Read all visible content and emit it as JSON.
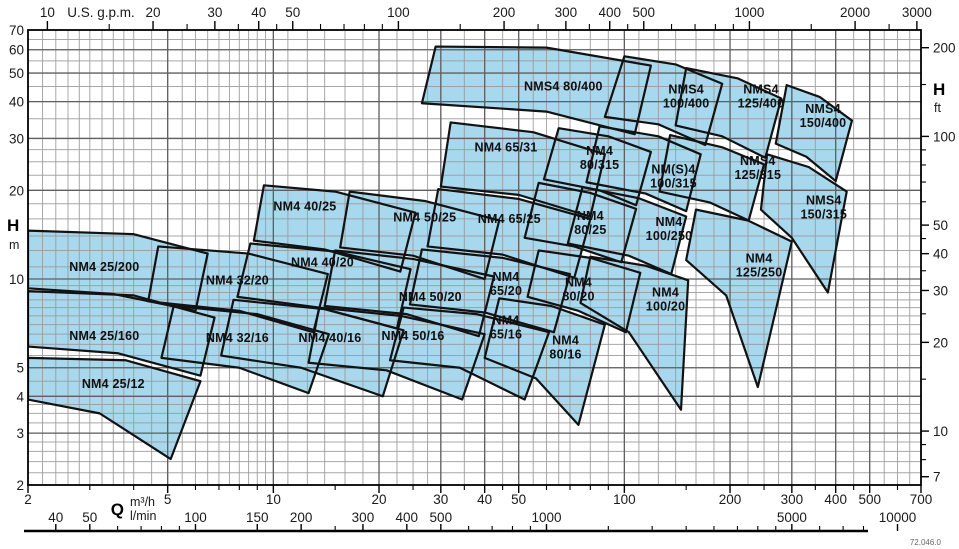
{
  "footer_code": "72.046.0",
  "colors": {
    "region_fill": "#a8d8ee",
    "region_stroke": "#121212",
    "grid_minor": "#999999",
    "grid_major": "#5f5f5f",
    "axis": "#000000",
    "text": "#111111"
  },
  "chart_data": {
    "type": "area",
    "description": "Pump selection range chart: head H vs flow Q, log-log scales, NM4/NMS4 four-pole pump family operating regions",
    "scales": {
      "q_min": 2,
      "q_max": 700,
      "h_min": 2,
      "h_max": 70,
      "gpm_per_m3h": 4.4029,
      "ft_per_m": 3.2808
    },
    "top_axis": {
      "title": "U.S. g.p.m.",
      "labels": [
        10,
        20,
        30,
        40,
        50,
        100,
        200,
        300,
        400,
        500,
        1000,
        2000,
        3000
      ],
      "minor_ticks": [
        15,
        25,
        35,
        45,
        60,
        70,
        80,
        90,
        150,
        250,
        350,
        450,
        600,
        700,
        800,
        900,
        1500,
        2500
      ]
    },
    "left_axis": {
      "title": "H",
      "unit": "m",
      "labels": [
        70,
        60,
        50,
        40,
        30,
        20,
        10,
        5,
        4,
        3,
        2
      ]
    },
    "right_axis": {
      "title": "H",
      "unit": "ft",
      "labels": [
        200,
        100,
        50,
        40,
        30,
        20,
        10,
        7
      ],
      "minor_ticks": [
        150,
        90,
        80,
        70,
        60,
        45,
        35,
        25,
        15,
        9,
        8
      ]
    },
    "bottom_axis": {
      "title": "Q",
      "unit_top": "m³/h",
      "unit_bottom": "l/min",
      "m3h_labels": [
        2,
        5,
        10,
        20,
        30,
        40,
        50,
        100,
        200,
        300,
        400,
        500,
        700
      ],
      "m3h_minor_ticks": [
        3,
        4,
        6,
        7,
        8,
        9,
        15,
        25,
        35,
        45,
        60,
        70,
        80,
        90,
        150,
        250,
        350,
        450,
        600
      ],
      "lmin_labels": [
        40,
        50,
        100,
        150,
        200,
        300,
        400,
        500,
        1000,
        5000,
        10000
      ],
      "lmin_minor_ticks": [
        60,
        70,
        80,
        90,
        250,
        600,
        700,
        800,
        900,
        1500,
        2000,
        2500,
        3000,
        3500,
        4000,
        4500,
        6000,
        7000,
        8000,
        9000
      ]
    },
    "grid": {
      "q_lines": [
        2.2,
        2.4,
        2.6,
        2.8,
        3,
        3.25,
        3.5,
        3.75,
        4,
        4.5,
        5,
        5.5,
        6,
        6.5,
        7,
        7.5,
        8,
        8.5,
        9,
        9.5,
        10,
        11,
        12.5,
        14,
        16,
        18,
        20,
        22.5,
        25,
        27.5,
        30,
        35,
        40,
        45,
        50,
        55,
        60,
        65,
        70,
        80,
        90,
        100,
        110,
        125,
        140,
        160,
        180,
        200,
        225,
        250,
        275,
        300,
        350,
        400,
        450,
        500,
        550,
        600,
        650
      ],
      "q_major": [
        5,
        10,
        20,
        30,
        40,
        50,
        100,
        200,
        300,
        400,
        500
      ],
      "h_lines": [
        2.2,
        2.4,
        2.6,
        2.8,
        3,
        3.25,
        3.5,
        3.75,
        4,
        4.5,
        5,
        5.5,
        6,
        6.5,
        7,
        7.5,
        8,
        8.5,
        9,
        9.5,
        10,
        11,
        12.5,
        14,
        16,
        18,
        20,
        22.5,
        25,
        27.5,
        30,
        35,
        40,
        45,
        50,
        55,
        60,
        65
      ],
      "h_major": [
        3,
        4,
        5,
        10,
        20,
        30,
        40,
        50,
        60
      ]
    },
    "regions": [
      {
        "name": "NM4 25/200",
        "lines": [
          "NM4 25/200"
        ],
        "label_q": 3.3,
        "label_h": 11,
        "points": [
          [
            2,
            14.6
          ],
          [
            4,
            14.2
          ],
          [
            6.5,
            12.2
          ],
          [
            6.0,
            7.8
          ],
          [
            3.5,
            8.9
          ],
          [
            2,
            9.3
          ]
        ]
      },
      {
        "name": "NM4 25/160",
        "lines": [
          "NM4 25/160"
        ],
        "label_q": 3.3,
        "label_h": 6.4,
        "points": [
          [
            2,
            9.1
          ],
          [
            4,
            8.8
          ],
          [
            6.8,
            7.4
          ],
          [
            6.2,
            4.7
          ],
          [
            3.6,
            5.6
          ],
          [
            2,
            5.9
          ]
        ]
      },
      {
        "name": "NM4 25/12",
        "lines": [
          "NM4 25/12"
        ],
        "label_q": 3.5,
        "label_h": 4.4,
        "points": [
          [
            2,
            5.4
          ],
          [
            3.8,
            5.3
          ],
          [
            6.2,
            4.5
          ],
          [
            5.1,
            2.45
          ],
          [
            3.2,
            3.5
          ],
          [
            2,
            3.9
          ]
        ]
      },
      {
        "name": "NM4 32/20",
        "lines": [
          "NM4 32/20"
        ],
        "label_q": 7.9,
        "label_h": 9.9,
        "points": [
          [
            4.7,
            12.9
          ],
          [
            8.5,
            12.2
          ],
          [
            14.3,
            10.4
          ],
          [
            13.0,
            6.6
          ],
          [
            8,
            7.8
          ],
          [
            4.4,
            8.4
          ]
        ]
      },
      {
        "name": "NM4 32/16",
        "lines": [
          "NM4 32/16"
        ],
        "label_q": 7.9,
        "label_h": 6.3,
        "points": [
          [
            5.2,
            8.1
          ],
          [
            9,
            7.6
          ],
          [
            14.4,
            6.5
          ],
          [
            12.6,
            4.1
          ],
          [
            8,
            5.0
          ],
          [
            4.8,
            5.4
          ]
        ]
      },
      {
        "name": "NM4 40/25",
        "lines": [
          "NM4 40/25"
        ],
        "label_q": 12.3,
        "label_h": 17.6,
        "points": [
          [
            9.4,
            20.8
          ],
          [
            15,
            19.8
          ],
          [
            25.4,
            16.8
          ],
          [
            23,
            10.6
          ],
          [
            14,
            12.6
          ],
          [
            8.8,
            13.5
          ]
        ]
      },
      {
        "name": "NM4 40/20",
        "lines": [
          "NM4 40/20"
        ],
        "label_q": 13.8,
        "label_h": 11.4,
        "points": [
          [
            8.6,
            13.2
          ],
          [
            15,
            12.4
          ],
          [
            24.6,
            10.8
          ],
          [
            22.5,
            6.8
          ],
          [
            13.5,
            8.0
          ],
          [
            7.9,
            8.7
          ]
        ]
      },
      {
        "name": "NM4 40/16",
        "lines": [
          "NM4 40/16"
        ],
        "label_q": 14.5,
        "label_h": 6.3,
        "points": [
          [
            7.7,
            8.5
          ],
          [
            14,
            7.9
          ],
          [
            23.5,
            6.7
          ],
          [
            20.5,
            4.0
          ],
          [
            12,
            5.0
          ],
          [
            7.1,
            5.5
          ]
        ]
      },
      {
        "name": "NM4 50/25",
        "lines": [
          "NM4 50/25"
        ],
        "label_q": 27,
        "label_h": 16.2,
        "points": [
          [
            16.5,
            19.8
          ],
          [
            27,
            18.4
          ],
          [
            44,
            15.8
          ],
          [
            40,
            10.0
          ],
          [
            25,
            12.0
          ],
          [
            15.5,
            12.8
          ]
        ]
      },
      {
        "name": "NM4 50/20",
        "lines": [
          "NM4 50/20"
        ],
        "label_q": 28,
        "label_h": 8.7,
        "points": [
          [
            15,
            12.5
          ],
          [
            25,
            11.7
          ],
          [
            42.5,
            10.2
          ],
          [
            38.5,
            6.4
          ],
          [
            24,
            7.6
          ],
          [
            14,
            8.1
          ]
        ]
      },
      {
        "name": "NM4 50/16",
        "lines": [
          "NM4 50/16"
        ],
        "label_q": 25,
        "label_h": 6.4,
        "points": [
          [
            13.5,
            8.0
          ],
          [
            23,
            7.5
          ],
          [
            40,
            6.5
          ],
          [
            34.5,
            3.9
          ],
          [
            21,
            4.9
          ],
          [
            12.6,
            5.2
          ]
        ]
      },
      {
        "name": "NM4 65/31",
        "lines": [
          "NM4 65/31"
        ],
        "label_q": 46,
        "label_h": 28,
        "points": [
          [
            32,
            34
          ],
          [
            55,
            31.5
          ],
          [
            88,
            26.5
          ],
          [
            80,
            16.3
          ],
          [
            50,
            19.3
          ],
          [
            30,
            20.6
          ]
        ]
      },
      {
        "name": "NM4 65/25",
        "lines": [
          "NM4 65/25"
        ],
        "label_q": 47,
        "label_h": 16,
        "points": [
          [
            29.5,
            20.2
          ],
          [
            50,
            18.7
          ],
          [
            80,
            16.0
          ],
          [
            72,
            10.1
          ],
          [
            45,
            12.1
          ],
          [
            27.5,
            12.9
          ]
        ]
      },
      {
        "name": "NM4 65/20",
        "lines": [
          "NM4",
          "65/20"
        ],
        "label_q": 46,
        "label_h": 9.7,
        "points": [
          [
            26.5,
            12.6
          ],
          [
            45,
            11.8
          ],
          [
            70,
            10.4
          ],
          [
            63,
            6.6
          ],
          [
            40,
            7.7
          ],
          [
            24.5,
            8.2
          ]
        ]
      },
      {
        "name": "NM4 65/16",
        "lines": [
          "NM4",
          "65/16"
        ],
        "label_q": 46,
        "label_h": 6.9,
        "points": [
          [
            23.5,
            8.0
          ],
          [
            38,
            7.6
          ],
          [
            61,
            6.6
          ],
          [
            52,
            3.9
          ],
          [
            34,
            5.0
          ],
          [
            21.5,
            5.3
          ]
        ]
      },
      {
        "name": "NMS4 80/400",
        "lines": [
          "NMS4 80/400"
        ],
        "label_q": 67,
        "label_h": 45,
        "points": [
          [
            29,
            61.5
          ],
          [
            60,
            61
          ],
          [
            119,
            53
          ],
          [
            107,
            31
          ],
          [
            60,
            37
          ],
          [
            26.5,
            39.5
          ]
        ]
      },
      {
        "name": "NM4 80/315",
        "lines": [
          "NM4",
          "80/315"
        ],
        "label_q": 85,
        "label_h": 26,
        "points": [
          [
            65,
            32.5
          ],
          [
            90,
            30.5
          ],
          [
            119,
            27
          ],
          [
            108,
            17.8
          ],
          [
            85,
            20
          ],
          [
            59,
            21.8
          ]
        ]
      },
      {
        "name": "NM4 80/25",
        "lines": [
          "NM4",
          "80/25"
        ],
        "label_q": 80,
        "label_h": 15.6,
        "points": [
          [
            57,
            21.2
          ],
          [
            80,
            19.6
          ],
          [
            108,
            17.3
          ],
          [
            98,
            11.4
          ],
          [
            72,
            12.9
          ],
          [
            52,
            13.8
          ]
        ]
      },
      {
        "name": "NM4 80/20",
        "lines": [
          "NM4",
          "80/20"
        ],
        "label_q": 74,
        "label_h": 9.3,
        "points": [
          [
            57,
            12.5
          ],
          [
            80,
            11.8
          ],
          [
            111,
            10.5
          ],
          [
            101,
            6.6
          ],
          [
            74,
            7.8
          ],
          [
            53,
            8.7
          ]
        ]
      },
      {
        "name": "NM4 80/16",
        "lines": [
          "NM4",
          "80/16"
        ],
        "label_q": 68,
        "label_h": 5.9,
        "points": [
          [
            44,
            8.6
          ],
          [
            62,
            8.1
          ],
          [
            88,
            7.0
          ],
          [
            74,
            3.2
          ],
          [
            56,
            4.6
          ],
          [
            40,
            5.4
          ]
        ]
      },
      {
        "name": "NMS4 100/400",
        "lines": [
          "NMS4",
          "100/400"
        ],
        "label_q": 150,
        "label_h": 42,
        "points": [
          [
            100,
            57
          ],
          [
            140,
            53.5
          ],
          [
            190,
            46
          ],
          [
            170,
            28.5
          ],
          [
            125,
            33.5
          ],
          [
            88,
            35.5
          ]
        ]
      },
      {
        "name": "NM(S)4 100/315",
        "lines": [
          "NM(S)4",
          "100/315"
        ],
        "label_q": 138,
        "label_h": 22.5,
        "points": [
          [
            85,
            33
          ],
          [
            125,
            30.5
          ],
          [
            165,
            26.5
          ],
          [
            150,
            17
          ],
          [
            115,
            19.5
          ],
          [
            78,
            21.3
          ]
        ]
      },
      {
        "name": "NM4 100/250",
        "lines": [
          "NM4",
          "100/250"
        ],
        "label_q": 134,
        "label_h": 14.9,
        "points": [
          [
            76,
            20.5
          ],
          [
            110,
            18.8
          ],
          [
            150,
            16.3
          ],
          [
            136,
            10.4
          ],
          [
            103,
            12
          ],
          [
            69,
            13.2
          ]
        ]
      },
      {
        "name": "NM4 100/20",
        "lines": [
          "NM4",
          "100/20"
        ],
        "label_q": 131,
        "label_h": 8.6,
        "points": [
          [
            80,
            11.9
          ],
          [
            115,
            11.1
          ],
          [
            152,
            9.9
          ],
          [
            145,
            3.6
          ],
          [
            103,
            6.6
          ],
          [
            75,
            8.3
          ]
        ]
      },
      {
        "name": "NMS4 125/400",
        "lines": [
          "NMS4",
          "125/400"
        ],
        "label_q": 245,
        "label_h": 42,
        "points": [
          [
            150,
            52
          ],
          [
            210,
            48
          ],
          [
            280,
            41
          ],
          [
            252,
            25.8
          ],
          [
            190,
            30.5
          ],
          [
            140,
            33.2
          ]
        ]
      },
      {
        "name": "NMS4 125/315",
        "lines": [
          "NMS4",
          "125/315"
        ],
        "label_q": 240,
        "label_h": 24,
        "points": [
          [
            135,
            30.8
          ],
          [
            190,
            28
          ],
          [
            250,
            24.5
          ],
          [
            226,
            15.8
          ],
          [
            175,
            18.2
          ],
          [
            126,
            19.8
          ]
        ]
      },
      {
        "name": "NM4 125/250",
        "lines": [
          "NM4",
          "125/250"
        ],
        "label_q": 242,
        "label_h": 11.2,
        "points": [
          [
            160,
            17.2
          ],
          [
            225,
            15.8
          ],
          [
            300,
            13.4
          ],
          [
            240,
            4.3
          ],
          [
            195,
            8.8
          ],
          [
            150,
            11.6
          ]
        ]
      },
      {
        "name": "NMS4 150/400",
        "lines": [
          "NMS4",
          "150/400"
        ],
        "label_q": 368,
        "label_h": 36,
        "points": [
          [
            290,
            45.5
          ],
          [
            360,
            41.5
          ],
          [
            445,
            34.5
          ],
          [
            400,
            21.5
          ],
          [
            330,
            26
          ],
          [
            270,
            28.8
          ]
        ]
      },
      {
        "name": "NMS4 150/315",
        "lines": [
          "NMS4",
          "150/315"
        ],
        "label_q": 370,
        "label_h": 17.6,
        "points": [
          [
            255,
            26.5
          ],
          [
            335,
            24
          ],
          [
            430,
            19.8
          ],
          [
            380,
            9.0
          ],
          [
            300,
            13.8
          ],
          [
            245,
            17.2
          ]
        ]
      }
    ]
  }
}
